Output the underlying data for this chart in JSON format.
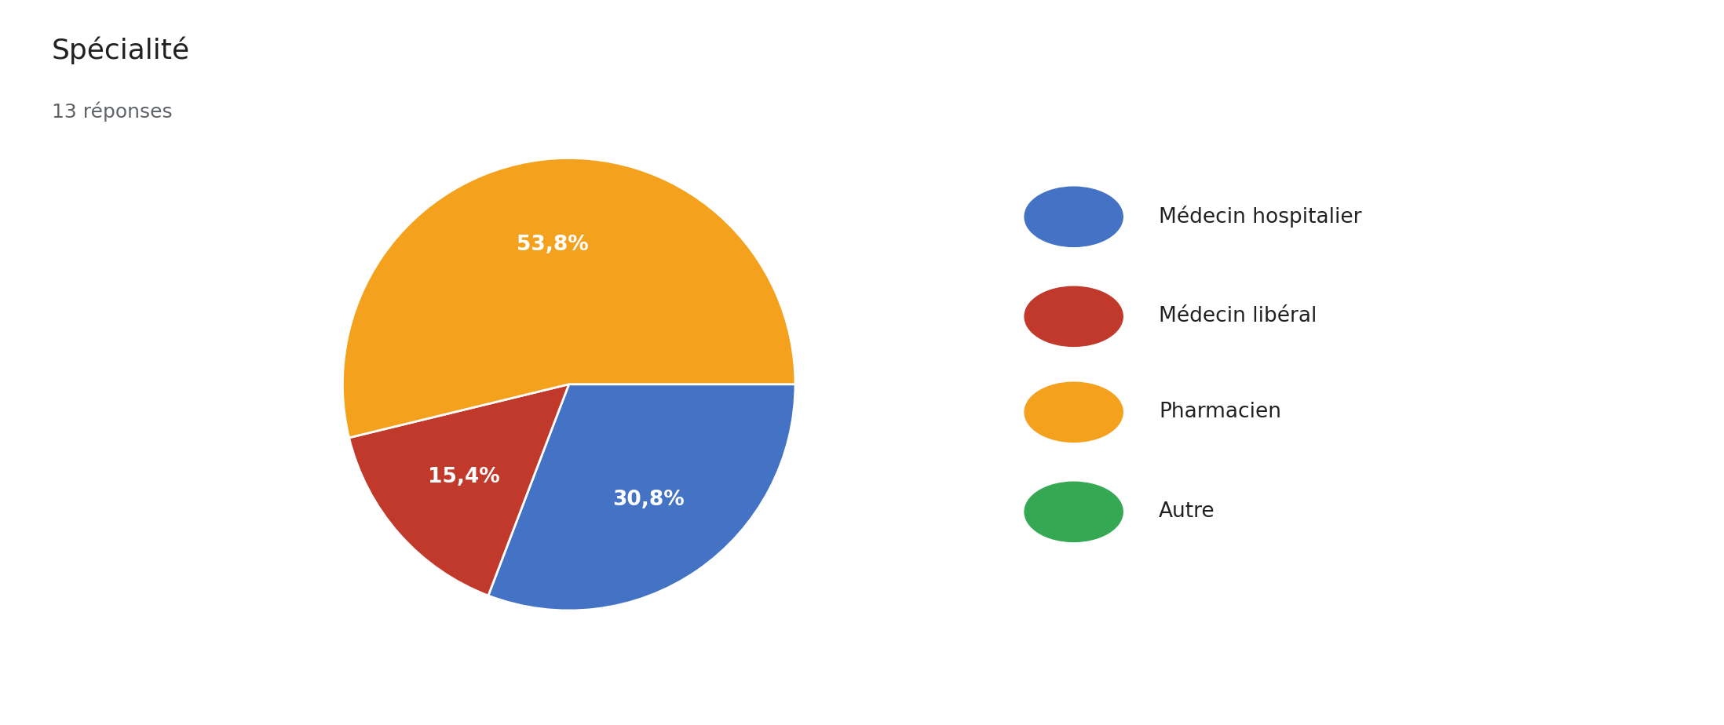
{
  "title": "Spécialité",
  "subtitle": "13 réponses",
  "labels": [
    "Médecin hospitalier",
    "Médecin libéral",
    "Pharmacien",
    "Autre"
  ],
  "values": [
    30.8,
    15.4,
    53.8,
    0.0
  ],
  "colors": [
    "#4472C4",
    "#C0392B",
    "#F4A21E",
    "#34A853"
  ],
  "pct_labels": [
    "30,8%",
    "15,4%",
    "53,8%",
    ""
  ],
  "background_color": "#ffffff",
  "title_fontsize": 26,
  "subtitle_fontsize": 18,
  "legend_fontsize": 19,
  "autopct_fontsize": 19,
  "startangle": 0
}
